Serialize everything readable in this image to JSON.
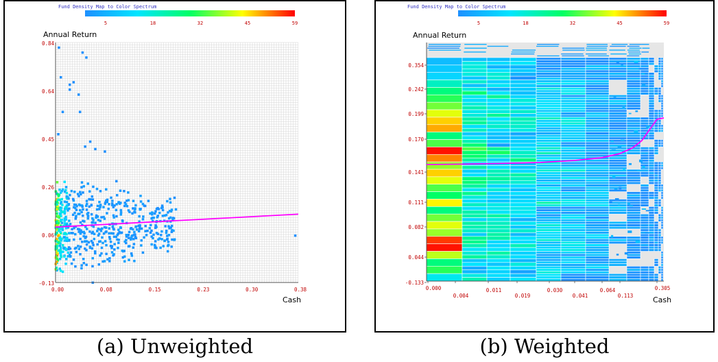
{
  "captions": {
    "a": "(a) Unweighted",
    "b": "(b) Weighted"
  },
  "colors": {
    "spectrum": [
      "#1e90ff",
      "#00e5ff",
      "#00ff66",
      "#ffff00",
      "#ff0000"
    ],
    "trend": "#ff00ff",
    "tick_label": "#c00000",
    "legend_title": "#3030c0",
    "grid": "#d4d4d4",
    "out_of_range": "#e6e6e6"
  },
  "chart_data": [
    {
      "type": "heatmap",
      "panel": "a",
      "legend": {
        "title": "Fund Density Map to Color Spectrum",
        "ticks": [
          "5",
          "18",
          "32",
          "45",
          "59"
        ]
      },
      "xlabel": "Cash",
      "ylabel": "Annual Return",
      "x_ticks": [
        "0.00",
        "0.08",
        "0.15",
        "0.23",
        "0.30",
        "0.38"
      ],
      "y_ticks": [
        "0.84",
        "0.64",
        "0.45",
        "0.26",
        "0.06",
        "-0.13"
      ],
      "xlim": [
        0.0,
        0.38
      ],
      "ylim": [
        -0.13,
        0.84
      ],
      "grid": true,
      "trend_line": {
        "x": [
          0.0,
          0.38
        ],
        "y": [
          0.094,
          0.146
        ]
      },
      "density_points": [
        {
          "x": 0.002,
          "y": 0.23,
          "v": 8
        },
        {
          "x": 0.002,
          "y": 0.19,
          "v": 14
        },
        {
          "x": 0.002,
          "y": 0.15,
          "v": 24
        },
        {
          "x": 0.002,
          "y": 0.12,
          "v": 36
        },
        {
          "x": 0.002,
          "y": 0.1,
          "v": 44
        },
        {
          "x": 0.002,
          "y": 0.07,
          "v": 38
        },
        {
          "x": 0.002,
          "y": 0.04,
          "v": 30
        },
        {
          "x": 0.002,
          "y": 0.01,
          "v": 24
        },
        {
          "x": 0.002,
          "y": -0.02,
          "v": 56
        },
        {
          "x": 0.002,
          "y": -0.05,
          "v": 20
        },
        {
          "x": 0.002,
          "y": -0.08,
          "v": 10
        },
        {
          "x": 0.008,
          "y": 0.19,
          "v": 10
        },
        {
          "x": 0.008,
          "y": 0.15,
          "v": 18
        },
        {
          "x": 0.008,
          "y": 0.12,
          "v": 26
        },
        {
          "x": 0.008,
          "y": 0.1,
          "v": 32
        },
        {
          "x": 0.008,
          "y": 0.07,
          "v": 28
        },
        {
          "x": 0.008,
          "y": 0.04,
          "v": 22
        },
        {
          "x": 0.008,
          "y": 0.01,
          "v": 16
        },
        {
          "x": 0.008,
          "y": -0.02,
          "v": 12
        },
        {
          "x": 0.014,
          "y": 0.15,
          "v": 12
        },
        {
          "x": 0.014,
          "y": 0.12,
          "v": 16
        },
        {
          "x": 0.014,
          "y": 0.1,
          "v": 20
        },
        {
          "x": 0.014,
          "y": 0.07,
          "v": 18
        },
        {
          "x": 0.014,
          "y": 0.04,
          "v": 14
        },
        {
          "x": 0.014,
          "y": 0.01,
          "v": 10
        },
        {
          "x": 0.021,
          "y": 0.12,
          "v": 10
        },
        {
          "x": 0.021,
          "y": 0.1,
          "v": 12
        },
        {
          "x": 0.021,
          "y": 0.07,
          "v": 11
        },
        {
          "x": 0.021,
          "y": 0.04,
          "v": 9
        },
        {
          "x": 0.005,
          "y": 0.82,
          "v": 5
        },
        {
          "x": 0.042,
          "y": 0.8,
          "v": 5
        },
        {
          "x": 0.048,
          "y": 0.78,
          "v": 5
        },
        {
          "x": 0.008,
          "y": 0.7,
          "v": 5
        },
        {
          "x": 0.022,
          "y": 0.65,
          "v": 5
        },
        {
          "x": 0.022,
          "y": 0.67,
          "v": 5
        },
        {
          "x": 0.028,
          "y": 0.68,
          "v": 5
        },
        {
          "x": 0.036,
          "y": 0.63,
          "v": 5
        },
        {
          "x": 0.011,
          "y": 0.56,
          "v": 5
        },
        {
          "x": 0.038,
          "y": 0.56,
          "v": 5
        },
        {
          "x": 0.004,
          "y": 0.47,
          "v": 5
        },
        {
          "x": 0.077,
          "y": 0.4,
          "v": 5
        },
        {
          "x": 0.062,
          "y": 0.41,
          "v": 5
        },
        {
          "x": 0.054,
          "y": 0.44,
          "v": 5
        },
        {
          "x": 0.046,
          "y": 0.42,
          "v": 5
        },
        {
          "x": 0.058,
          "y": -0.13,
          "v": 5
        },
        {
          "x": 0.375,
          "y": 0.06,
          "v": 5
        },
        {
          "x": 0.16,
          "y": 0.14,
          "v": 5
        },
        {
          "x": 0.17,
          "y": 0.12,
          "v": 5
        },
        {
          "x": 0.185,
          "y": 0.13,
          "v": 5
        },
        {
          "x": 0.15,
          "y": 0.08,
          "v": 5
        },
        {
          "x": 0.12,
          "y": 0.15,
          "v": 5
        },
        {
          "x": 0.13,
          "y": 0.1,
          "v": 5
        },
        {
          "x": 0.107,
          "y": 0.24,
          "v": 5
        },
        {
          "x": 0.095,
          "y": 0.28,
          "v": 5
        },
        {
          "x": 0.11,
          "y": 0.03,
          "v": 5
        },
        {
          "x": 0.09,
          "y": -0.02,
          "v": 5
        },
        {
          "x": 0.14,
          "y": 0.18,
          "v": 5
        },
        {
          "x": 0.12,
          "y": 0.06,
          "v": 5
        }
      ]
    },
    {
      "type": "heatmap",
      "panel": "b",
      "legend": {
        "title": "Fund Density Map to Color Spectrum",
        "ticks": [
          "5",
          "18",
          "32",
          "45",
          "59"
        ]
      },
      "xlabel": "Cash",
      "ylabel": "Annual Return",
      "x_ticks": [
        "0.000",
        "0.004",
        "0.011",
        "0.019",
        "0.030",
        "0.041",
        "0.064",
        "0.113",
        "0.305"
      ],
      "y_ticks": [
        "0.354",
        "0.242",
        "0.199",
        "0.170",
        "0.141",
        "0.111",
        "0.082",
        "0.044",
        "-0.133"
      ],
      "grid": true,
      "first_column_values": [
        12,
        14,
        16,
        24,
        30,
        34,
        38,
        44,
        48,
        50,
        30,
        36,
        58,
        52,
        40,
        48,
        44,
        36,
        32,
        46,
        30,
        38,
        44,
        40,
        56,
        58,
        42,
        30,
        34,
        20
      ]
    }
  ]
}
